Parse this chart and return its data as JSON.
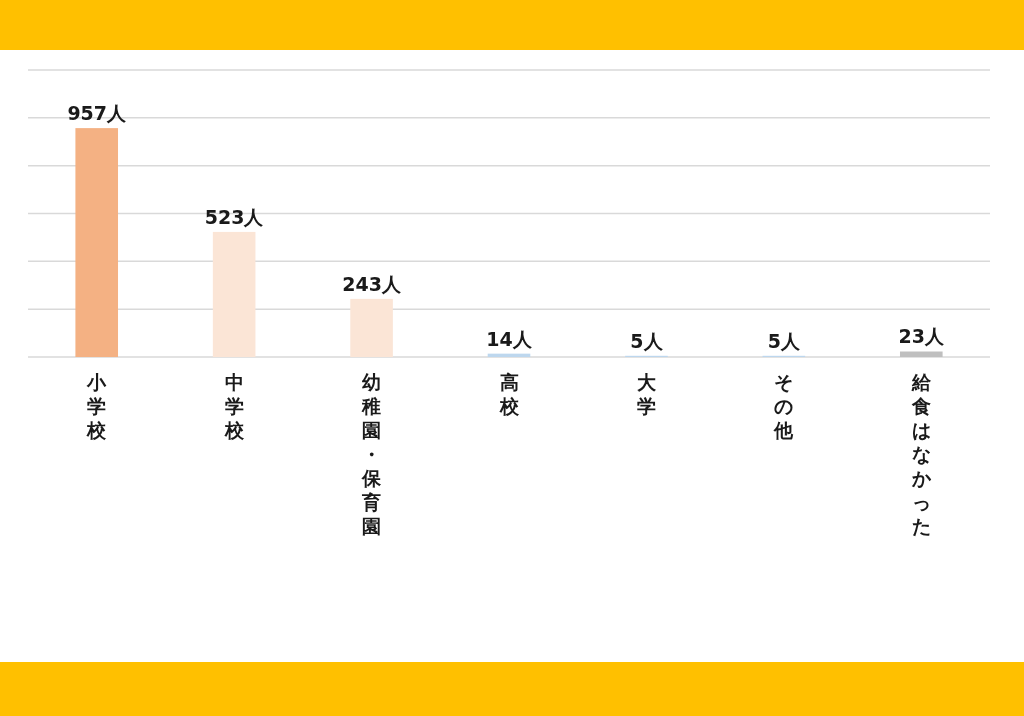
{
  "chart_data": {
    "type": "bar",
    "categories": [
      "小学校",
      "中学校",
      "幼稚園・保育園",
      "高校",
      "大学",
      "その他",
      "給食はなかった"
    ],
    "values": [
      957,
      523,
      243,
      14,
      5,
      5,
      23
    ],
    "value_labels": [
      "957人",
      "523人",
      "243人",
      "14人",
      "5人",
      "5人",
      "23人"
    ],
    "colors": [
      "#f4b183",
      "#fbe5d6",
      "#fbe5d6",
      "#bdd7ee",
      "#bdd7ee",
      "#bdd7ee",
      "#bfbfbf"
    ],
    "ylim": [
      0,
      1200
    ],
    "yticks": [
      {
        "value": 0,
        "label": null
      },
      {
        "value": 200,
        "label": null
      },
      {
        "value": 400,
        "label": null
      },
      {
        "value": 600,
        "label": null
      },
      {
        "value": 800,
        "label": null
      },
      {
        "value": 1000,
        "label": null
      },
      {
        "value": 1200,
        "label": null
      }
    ],
    "grid": "y",
    "tick_labels": "x"
  }
}
